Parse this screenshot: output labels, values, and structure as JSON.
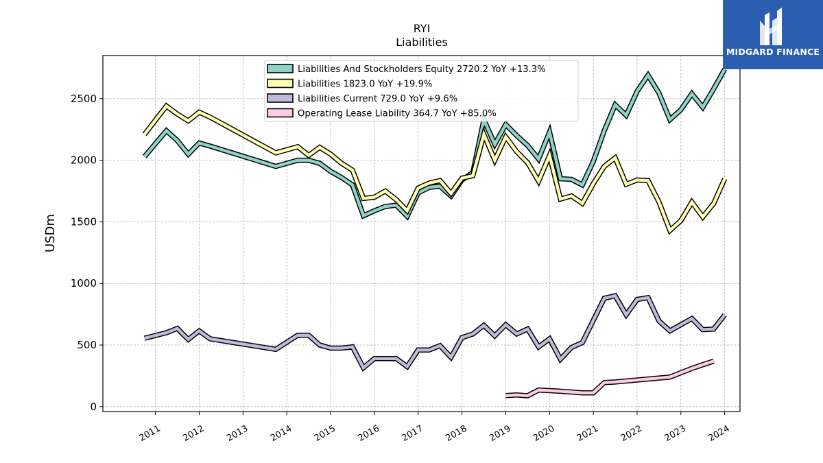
{
  "chart_data": {
    "type": "line",
    "title": "RYI",
    "subtitle": "Liabilities",
    "ylabel": "USDm",
    "xlabel": "",
    "ylim": [
      -40,
      2850
    ],
    "xlim": [
      2009.8,
      2024.35
    ],
    "grid": true,
    "legend_position": "top-center",
    "yticks": [
      0,
      500,
      1000,
      1500,
      2000,
      2500
    ],
    "xticks": [
      "2011",
      "2012",
      "2013",
      "2014",
      "2015",
      "2016",
      "2017",
      "2018",
      "2019",
      "2020",
      "2021",
      "2022",
      "2023",
      "2024"
    ],
    "series": [
      {
        "name": "Liabilities And Stockholders Equity",
        "legend": "Liabilities And Stockholders Equity  2720.2 YoY +13.3%",
        "color": "#8dd3c7",
        "points": [
          [
            2010.75,
            2030
          ],
          [
            2011.25,
            2240
          ],
          [
            2011.5,
            2160
          ],
          [
            2011.75,
            2050
          ],
          [
            2012.0,
            2140
          ],
          [
            2012.25,
            2115
          ],
          [
            2013.75,
            1950
          ],
          [
            2014.25,
            2000
          ],
          [
            2014.5,
            2000
          ],
          [
            2014.75,
            1975
          ],
          [
            2015.0,
            1910
          ],
          [
            2015.25,
            1860
          ],
          [
            2015.5,
            1800
          ],
          [
            2015.75,
            1550
          ],
          [
            2016.0,
            1590
          ],
          [
            2016.25,
            1625
          ],
          [
            2016.5,
            1635
          ],
          [
            2016.75,
            1545
          ],
          [
            2017.0,
            1735
          ],
          [
            2017.25,
            1780
          ],
          [
            2017.5,
            1790
          ],
          [
            2017.75,
            1710
          ],
          [
            2018.0,
            1840
          ],
          [
            2018.25,
            1900
          ],
          [
            2018.5,
            2330
          ],
          [
            2018.75,
            2130
          ],
          [
            2019.0,
            2290
          ],
          [
            2019.25,
            2200
          ],
          [
            2019.5,
            2120
          ],
          [
            2019.75,
            2010
          ],
          [
            2020.0,
            2230
          ],
          [
            2020.25,
            1850
          ],
          [
            2020.5,
            1845
          ],
          [
            2020.75,
            1800
          ],
          [
            2021.0,
            1990
          ],
          [
            2021.25,
            2240
          ],
          [
            2021.5,
            2450
          ],
          [
            2021.75,
            2365
          ],
          [
            2022.0,
            2560
          ],
          [
            2022.25,
            2690
          ],
          [
            2022.5,
            2545
          ],
          [
            2022.75,
            2330
          ],
          [
            2023.0,
            2410
          ],
          [
            2023.25,
            2540
          ],
          [
            2023.5,
            2430
          ],
          [
            2023.75,
            2580
          ],
          [
            2024.0,
            2740
          ]
        ]
      },
      {
        "name": "Liabilities",
        "legend": "Liabilities  1823.0 YoY +19.9%",
        "color": "#ffffb3",
        "points": [
          [
            2010.75,
            2210
          ],
          [
            2011.25,
            2440
          ],
          [
            2011.5,
            2375
          ],
          [
            2011.75,
            2320
          ],
          [
            2012.0,
            2390
          ],
          [
            2012.25,
            2350
          ],
          [
            2013.75,
            2060
          ],
          [
            2014.25,
            2110
          ],
          [
            2014.5,
            2040
          ],
          [
            2014.75,
            2105
          ],
          [
            2015.0,
            2050
          ],
          [
            2015.25,
            1975
          ],
          [
            2015.5,
            1920
          ],
          [
            2015.75,
            1690
          ],
          [
            2016.0,
            1700
          ],
          [
            2016.25,
            1750
          ],
          [
            2016.5,
            1680
          ],
          [
            2016.75,
            1590
          ],
          [
            2017.0,
            1775
          ],
          [
            2017.25,
            1815
          ],
          [
            2017.5,
            1835
          ],
          [
            2017.75,
            1730
          ],
          [
            2018.0,
            1855
          ],
          [
            2018.25,
            1875
          ],
          [
            2018.5,
            2210
          ],
          [
            2018.75,
            2000
          ],
          [
            2019.0,
            2190
          ],
          [
            2019.25,
            2070
          ],
          [
            2019.5,
            1980
          ],
          [
            2019.75,
            1830
          ],
          [
            2020.0,
            2040
          ],
          [
            2020.25,
            1685
          ],
          [
            2020.5,
            1710
          ],
          [
            2020.75,
            1650
          ],
          [
            2021.0,
            1810
          ],
          [
            2021.25,
            1950
          ],
          [
            2021.5,
            2020
          ],
          [
            2021.75,
            1805
          ],
          [
            2022.0,
            1840
          ],
          [
            2022.25,
            1835
          ],
          [
            2022.5,
            1660
          ],
          [
            2022.75,
            1430
          ],
          [
            2023.0,
            1510
          ],
          [
            2023.25,
            1660
          ],
          [
            2023.5,
            1540
          ],
          [
            2023.75,
            1650
          ],
          [
            2024.0,
            1850
          ]
        ]
      },
      {
        "name": "Liabilities Current",
        "legend": "Liabilities Current  729.0 YoY +9.6%",
        "color": "#bebada",
        "points": [
          [
            2010.75,
            555
          ],
          [
            2011.25,
            600
          ],
          [
            2011.5,
            635
          ],
          [
            2011.75,
            545
          ],
          [
            2012.0,
            615
          ],
          [
            2012.25,
            550
          ],
          [
            2013.75,
            465
          ],
          [
            2014.25,
            580
          ],
          [
            2014.5,
            580
          ],
          [
            2014.75,
            500
          ],
          [
            2015.0,
            475
          ],
          [
            2015.25,
            475
          ],
          [
            2015.5,
            485
          ],
          [
            2015.75,
            315
          ],
          [
            2016.0,
            390
          ],
          [
            2016.25,
            390
          ],
          [
            2016.5,
            390
          ],
          [
            2016.75,
            325
          ],
          [
            2017.0,
            460
          ],
          [
            2017.25,
            460
          ],
          [
            2017.5,
            495
          ],
          [
            2017.75,
            400
          ],
          [
            2018.0,
            560
          ],
          [
            2018.25,
            590
          ],
          [
            2018.5,
            660
          ],
          [
            2018.75,
            575
          ],
          [
            2019.0,
            665
          ],
          [
            2019.25,
            590
          ],
          [
            2019.5,
            630
          ],
          [
            2019.75,
            485
          ],
          [
            2020.0,
            550
          ],
          [
            2020.25,
            385
          ],
          [
            2020.5,
            480
          ],
          [
            2020.75,
            520
          ],
          [
            2021.0,
            700
          ],
          [
            2021.25,
            880
          ],
          [
            2021.5,
            900
          ],
          [
            2021.75,
            745
          ],
          [
            2022.0,
            870
          ],
          [
            2022.25,
            885
          ],
          [
            2022.5,
            695
          ],
          [
            2022.75,
            615
          ],
          [
            2023.0,
            665
          ],
          [
            2023.25,
            715
          ],
          [
            2023.5,
            625
          ],
          [
            2023.75,
            630
          ],
          [
            2024.0,
            745
          ]
        ]
      },
      {
        "name": "Operating Lease Liability",
        "legend": "Operating Lease Liability  364.7 YoY +85.0%",
        "color": "#fccde5",
        "points": [
          [
            2019.0,
            90
          ],
          [
            2019.25,
            95
          ],
          [
            2019.5,
            88
          ],
          [
            2019.75,
            135
          ],
          [
            2020.0,
            130
          ],
          [
            2020.25,
            125
          ],
          [
            2020.75,
            112
          ],
          [
            2021.0,
            112
          ],
          [
            2021.25,
            195
          ],
          [
            2021.5,
            200
          ],
          [
            2022.75,
            240
          ],
          [
            2023.0,
            275
          ],
          [
            2023.25,
            310
          ],
          [
            2023.75,
            370
          ]
        ]
      }
    ]
  },
  "logo": {
    "text": "MIDGARD FINANCE",
    "icon": "midgard-logo-icon",
    "background": "#2b5db0"
  }
}
